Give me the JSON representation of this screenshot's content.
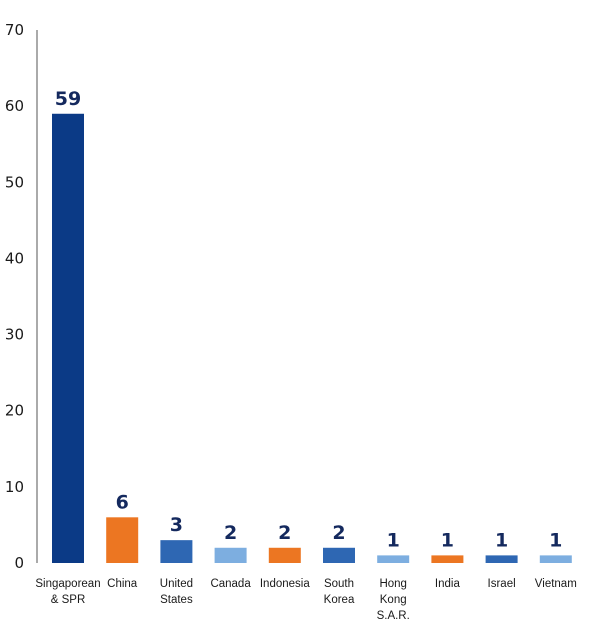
{
  "chart_data": {
    "type": "bar",
    "categories": [
      [
        "Singaporean",
        "& SPR"
      ],
      [
        "China"
      ],
      [
        "United",
        "States"
      ],
      [
        "Canada"
      ],
      [
        "Indonesia"
      ],
      [
        "South",
        "Korea"
      ],
      [
        "Hong",
        "Kong",
        "S.A.R."
      ],
      [
        "India"
      ],
      [
        "Israel"
      ],
      [
        "Vietnam"
      ]
    ],
    "values": [
      59,
      6,
      3,
      2,
      2,
      2,
      1,
      1,
      1,
      1
    ],
    "bar_colors": [
      "#0b3a86",
      "#ec7622",
      "#2e67b3",
      "#7daee0",
      "#ec7622",
      "#2e67b3",
      "#7daee0",
      "#ec7622",
      "#2e67b3",
      "#7daee0"
    ],
    "yticks": [
      0,
      10,
      20,
      30,
      40,
      50,
      60,
      70
    ],
    "ylim": [
      0,
      70
    ],
    "title": "",
    "xlabel": "",
    "ylabel": "",
    "grid": false,
    "legend": "none",
    "data_label_color": "#14295e"
  }
}
